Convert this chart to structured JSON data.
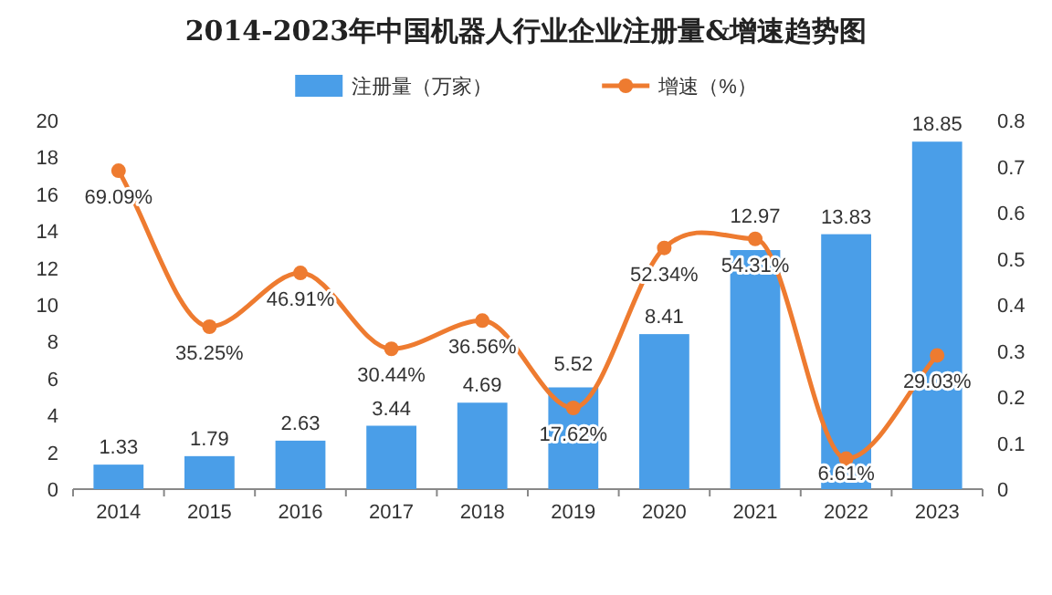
{
  "chart_data": {
    "type": "bar",
    "title": "2014-2023年中国机器人行业企业注册量&增速趋势图",
    "categories": [
      "2014",
      "2015",
      "2016",
      "2017",
      "2018",
      "2019",
      "2020",
      "2021",
      "2022",
      "2023"
    ],
    "series": [
      {
        "name": "注册量（万家）",
        "color": "#4a9ee8",
        "values": [
          1.33,
          1.79,
          2.63,
          3.44,
          4.69,
          5.52,
          8.41,
          12.97,
          13.83,
          18.85
        ],
        "value_labels": [
          "1.33",
          "1.79",
          "2.63",
          "3.44",
          "4.69",
          "5.52",
          "8.41",
          "12.97",
          "13.83",
          "18.85"
        ]
      },
      {
        "name": "增速（%）",
        "type": "line",
        "axis": "y2",
        "color": "#ee7b30",
        "values": [
          0.6909,
          0.3525,
          0.4691,
          0.3044,
          0.3656,
          0.1762,
          0.5234,
          0.5431,
          0.0661,
          0.2903
        ],
        "value_labels": [
          "69.09%",
          "35.25%",
          "46.91%",
          "30.44%",
          "36.56%",
          "17.62%",
          "52.34%",
          "54.31%",
          "6.61%",
          "29.03%"
        ]
      }
    ],
    "ylim": [
      0,
      20
    ],
    "yticks": [
      0,
      2,
      4,
      6,
      8,
      10,
      12,
      14,
      16,
      18,
      20
    ],
    "y2lim": [
      0,
      0.8
    ],
    "y2ticks": [
      0,
      0.1,
      0.2,
      0.3,
      0.4,
      0.5,
      0.6,
      0.7,
      0.8
    ],
    "legend": "top",
    "marker": "circle"
  }
}
